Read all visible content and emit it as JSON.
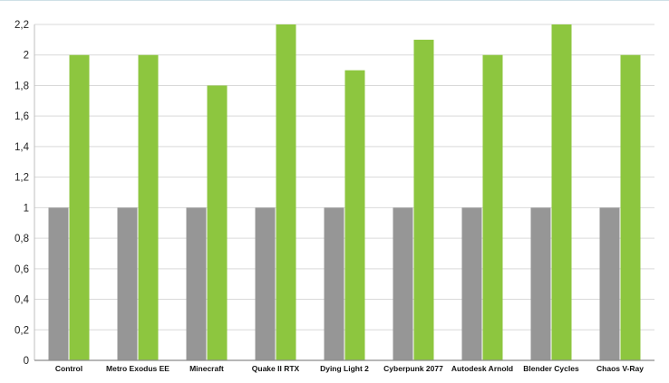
{
  "chart_data": {
    "type": "bar",
    "title": "",
    "xlabel": "",
    "ylabel": "",
    "categories": [
      "Control",
      "Metro Exodus EE",
      "Minecraft",
      "Quake II RTX",
      "Dying Light 2",
      "Cyberpunk 2077",
      "Autodesk Arnold",
      "Blender Cycles",
      "Chaos V-Ray"
    ],
    "series": [
      {
        "color": "#969696",
        "values": [
          1,
          1,
          1,
          1,
          1,
          1,
          1,
          1,
          1
        ]
      },
      {
        "color": "#8dc63f",
        "values": [
          2,
          2,
          1.8,
          2.2,
          1.9,
          2.1,
          2,
          2.2,
          2
        ]
      }
    ],
    "ylim": [
      0,
      2.2
    ],
    "yticks": [
      0,
      0.2,
      0.4,
      0.6,
      0.8,
      1,
      1.2,
      1.4,
      1.6,
      1.8,
      2,
      2.2
    ],
    "ytick_labels": [
      "0",
      "0,2",
      "0,4",
      "0,6",
      "0,8",
      "1",
      "1,2",
      "1,4",
      "1,6",
      "1,8",
      "2",
      "2,2"
    ],
    "grid": true,
    "legend": "none"
  }
}
